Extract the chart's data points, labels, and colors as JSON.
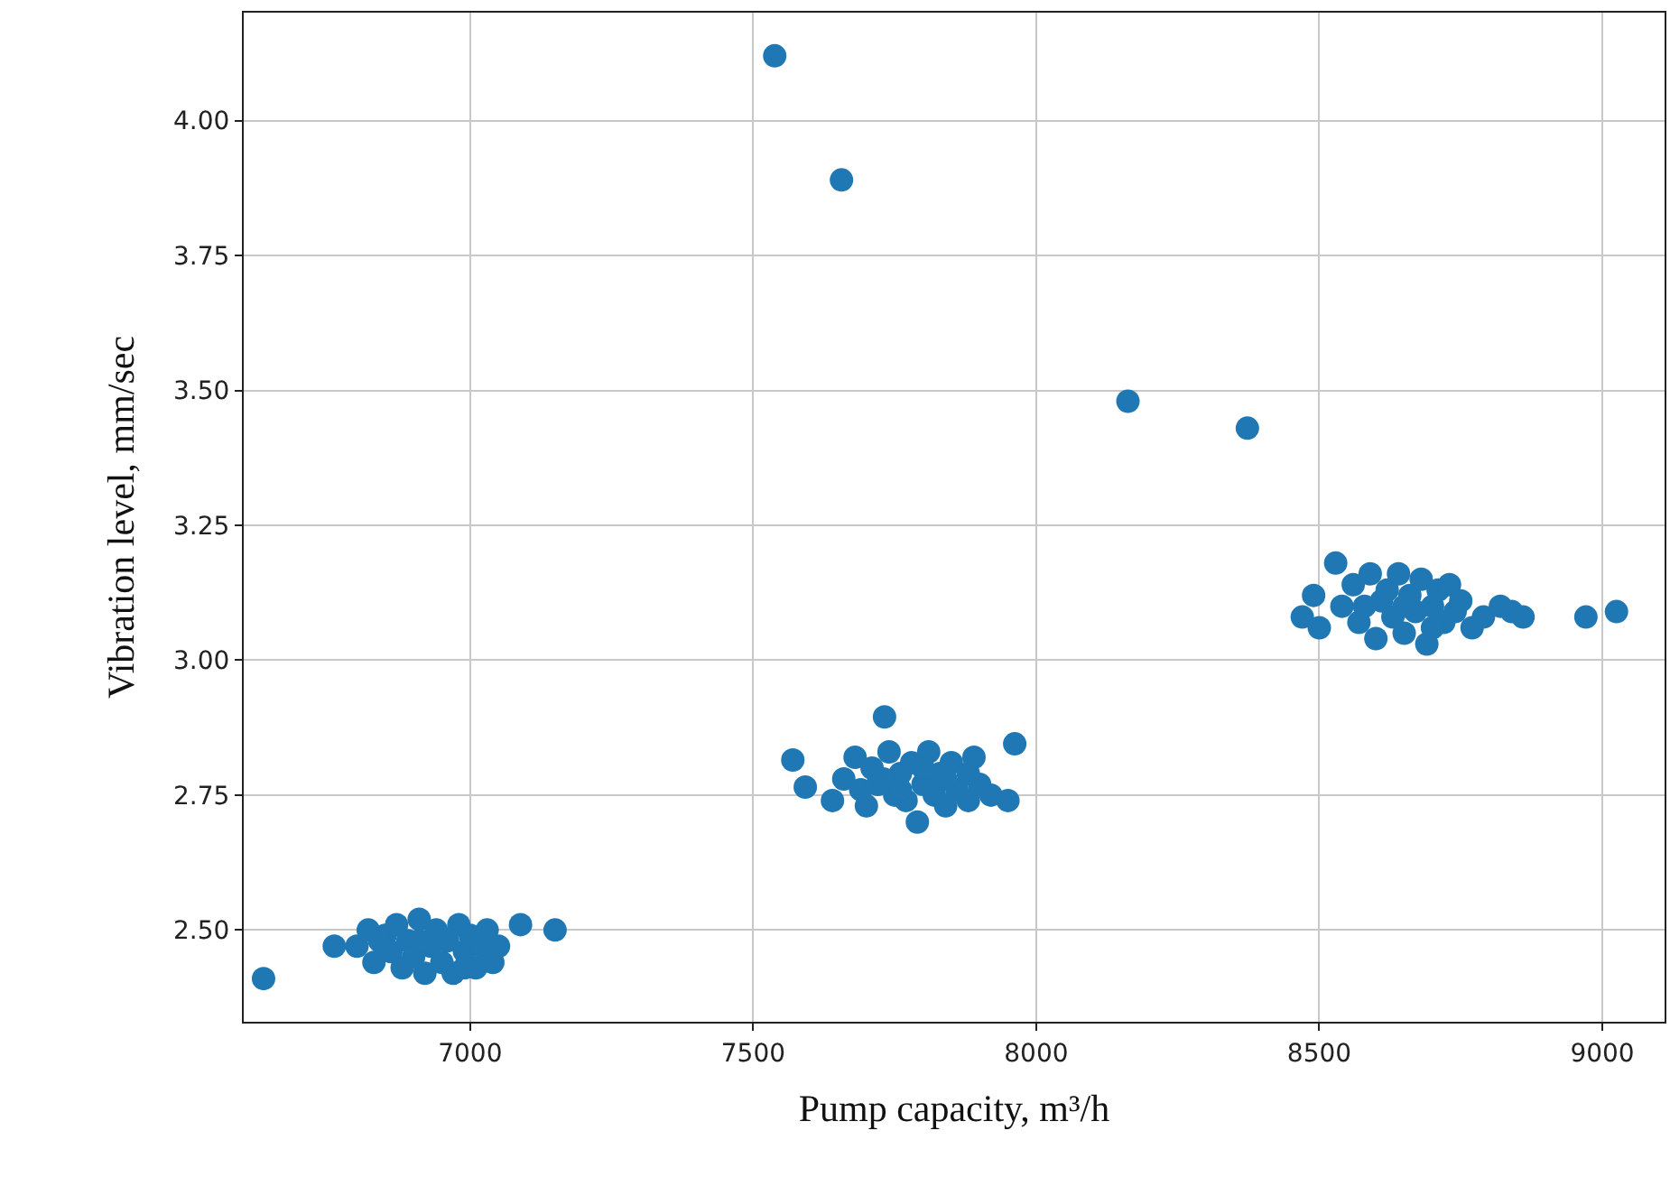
{
  "chart_data": {
    "type": "scatter",
    "xlabel": "Pump capacity, m³/h",
    "ylabel": "Vibration level, mm/sec",
    "xlim": [
      6600,
      9110
    ],
    "ylim": [
      2.33,
      4.2
    ],
    "xticks": [
      7000,
      7500,
      8000,
      8500,
      9000
    ],
    "yticks": [
      {
        "value": 2.5,
        "label": "2.50"
      },
      {
        "value": 2.75,
        "label": "2.75"
      },
      {
        "value": 3.0,
        "label": "3.00"
      },
      {
        "value": 3.25,
        "label": "3.25"
      },
      {
        "value": 3.5,
        "label": "3.50"
      },
      {
        "value": 3.75,
        "label": "3.75"
      },
      {
        "value": 4.0,
        "label": "4.00"
      }
    ],
    "grid": true,
    "marker": "circle",
    "series": [
      {
        "color": "#1f77b4",
        "x": [
          6635,
          7538,
          7656,
          8162,
          8373,
          9025,
          8971,
          7150,
          7089,
          6800,
          6820,
          6830,
          6850,
          6860,
          6870,
          6880,
          6890,
          6900,
          6910,
          6920,
          6930,
          6940,
          6950,
          6960,
          6970,
          6980,
          6990,
          7000,
          7010,
          7020,
          7030,
          7040,
          6910,
          6990,
          6840,
          7050,
          6760,
          7570,
          7592,
          7732,
          7962,
          7640,
          7660,
          7680,
          7690,
          7700,
          7710,
          7720,
          7740,
          7750,
          7760,
          7770,
          7780,
          7790,
          7800,
          7810,
          7820,
          7830,
          7840,
          7850,
          7860,
          7880,
          7890,
          7900,
          7920,
          7950,
          7730,
          7760,
          7800,
          7840,
          7880,
          8470,
          8490,
          8500,
          8529,
          8540,
          8560,
          8570,
          8590,
          8600,
          8610,
          8620,
          8630,
          8640,
          8650,
          8660,
          8670,
          8680,
          8690,
          8700,
          8710,
          8720,
          8730,
          8740,
          8750,
          8770,
          8790,
          8820,
          8840,
          8860,
          8580,
          8650,
          8700
        ],
        "values": [
          2.41,
          4.12,
          3.89,
          3.48,
          3.43,
          3.09,
          3.08,
          2.5,
          2.51,
          2.47,
          2.5,
          2.44,
          2.49,
          2.46,
          2.51,
          2.43,
          2.48,
          2.45,
          2.52,
          2.42,
          2.47,
          2.5,
          2.44,
          2.48,
          2.42,
          2.51,
          2.46,
          2.49,
          2.43,
          2.47,
          2.5,
          2.44,
          2.48,
          2.43,
          2.48,
          2.47,
          2.47,
          2.815,
          2.765,
          2.895,
          2.845,
          2.74,
          2.78,
          2.82,
          2.76,
          2.73,
          2.8,
          2.77,
          2.83,
          2.75,
          2.79,
          2.74,
          2.81,
          2.7,
          2.77,
          2.83,
          2.75,
          2.79,
          2.73,
          2.81,
          2.76,
          2.74,
          2.82,
          2.77,
          2.75,
          2.74,
          2.78,
          2.76,
          2.8,
          2.78,
          2.79,
          3.08,
          3.12,
          3.06,
          3.18,
          3.1,
          3.14,
          3.07,
          3.16,
          3.04,
          3.11,
          3.13,
          3.08,
          3.16,
          3.05,
          3.12,
          3.09,
          3.15,
          3.03,
          3.1,
          3.13,
          3.07,
          3.14,
          3.09,
          3.11,
          3.06,
          3.08,
          3.1,
          3.09,
          3.08,
          3.1,
          3.1,
          3.06
        ]
      }
    ]
  }
}
